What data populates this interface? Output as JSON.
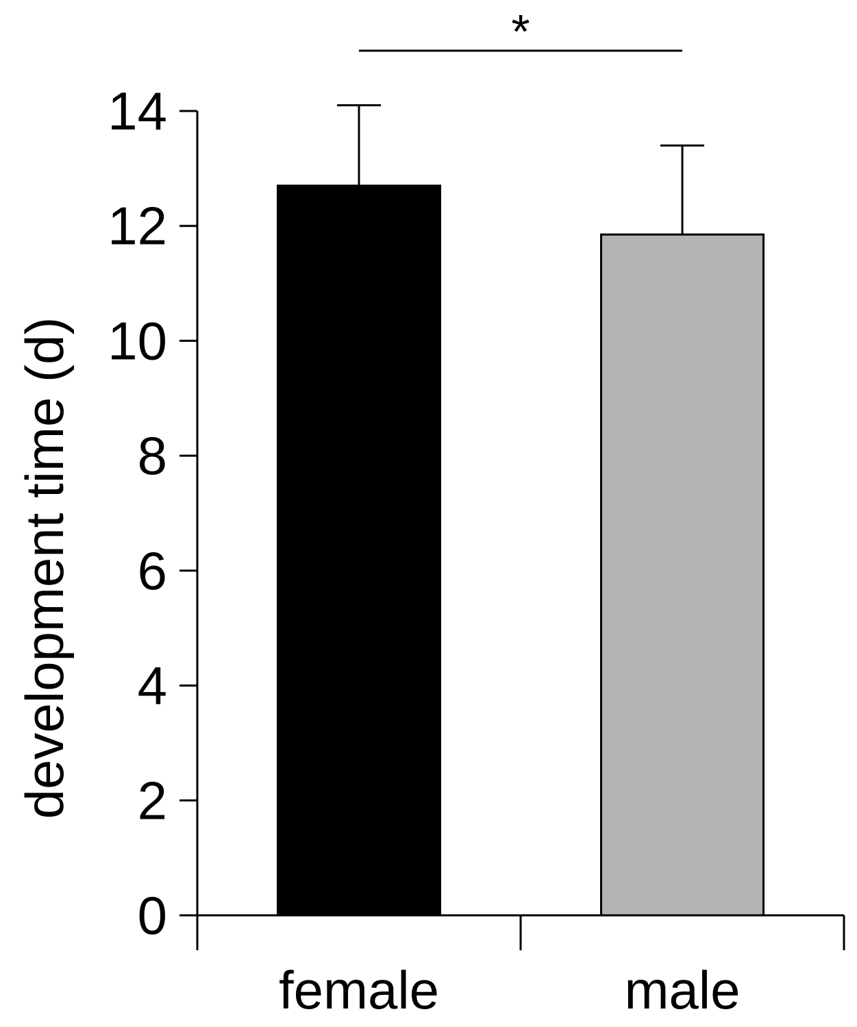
{
  "chart_data": {
    "type": "bar",
    "categories": [
      "female",
      "male"
    ],
    "values": [
      12.7,
      11.85
    ],
    "errors": [
      1.4,
      1.55
    ],
    "colors": [
      "#000000",
      "#b3b3b3"
    ],
    "ylabel": "development time (d)",
    "xlabel": "",
    "ylim": [
      0,
      14
    ],
    "yticks": [
      "0",
      "2",
      "4",
      "6",
      "8",
      "10",
      "12",
      "14"
    ],
    "grid": false,
    "significance": {
      "label": "*",
      "between": [
        "female",
        "male"
      ]
    }
  }
}
